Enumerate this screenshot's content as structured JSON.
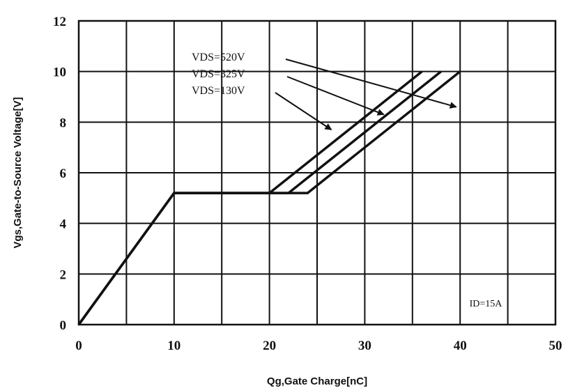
{
  "chart_data": {
    "type": "line",
    "title": "",
    "xlabel": "Qg,Gate Charge[nC]",
    "ylabel": "Vgs,Gate-to-Source Voltage[V]",
    "xlim": [
      0,
      50
    ],
    "ylim": [
      0,
      12
    ],
    "xticks": [
      "0",
      "10",
      "20",
      "30",
      "40",
      "50"
    ],
    "yticks": [
      "0",
      "2",
      "4",
      "6",
      "8",
      "10",
      "12"
    ],
    "grid": true,
    "series": [
      {
        "name": "VDS=520V",
        "x": [
          0,
          10,
          24,
          40
        ],
        "y": [
          0,
          5.2,
          5.2,
          10
        ]
      },
      {
        "name": "VDS=325V",
        "x": [
          0,
          10,
          22,
          38
        ],
        "y": [
          0,
          5.2,
          5.2,
          10
        ]
      },
      {
        "name": "VDS=130V",
        "x": [
          0,
          10,
          20,
          36
        ],
        "y": [
          0,
          5.2,
          5.2,
          10
        ]
      }
    ],
    "annotation": "ID=15A"
  }
}
